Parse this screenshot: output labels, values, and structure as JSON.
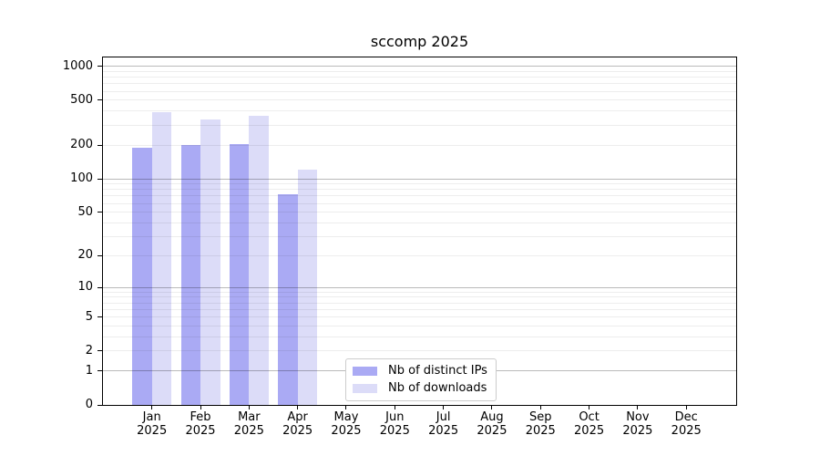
{
  "chart_data": {
    "type": "bar",
    "title": "sccomp 2025",
    "x_categories": [
      "Jan",
      "Feb",
      "Mar",
      "Apr",
      "May",
      "Jun",
      "Jul",
      "Aug",
      "Sep",
      "Oct",
      "Nov",
      "Dec"
    ],
    "x_year": "2025",
    "series": [
      {
        "name": "Nb of distinct IPs",
        "color": "#aaaaf4",
        "values": [
          188,
          199,
          203,
          73,
          null,
          null,
          null,
          null,
          null,
          null,
          null,
          null
        ]
      },
      {
        "name": "Nb of downloads",
        "color": "#dcdcf8",
        "values": [
          390,
          335,
          365,
          121,
          null,
          null,
          null,
          null,
          null,
          null,
          null,
          null
        ]
      }
    ],
    "yscale": "log1p",
    "y_ticks": [
      0,
      1,
      2,
      5,
      10,
      20,
      50,
      100,
      200,
      500,
      1000
    ],
    "ylim": [
      0,
      1200
    ],
    "grid": "horizontal major and minor lines drawn over bars",
    "legend_position": "lower center"
  }
}
